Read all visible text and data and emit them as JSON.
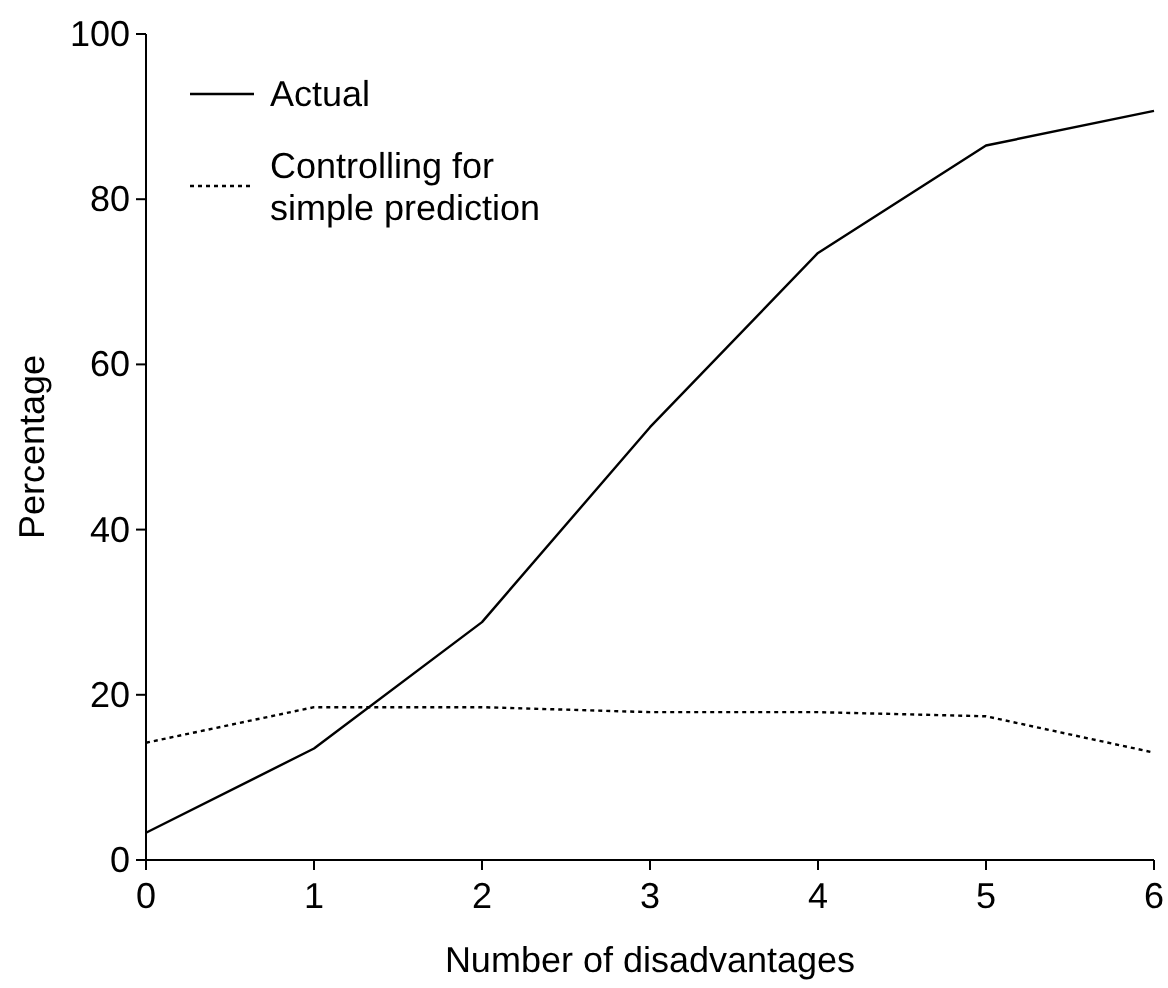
{
  "chart_data": {
    "type": "line",
    "xlabel": "Number of disadvantages",
    "ylabel": "Percentage",
    "x": [
      0,
      1,
      2,
      3,
      4,
      5,
      6
    ],
    "xlim": [
      0,
      6
    ],
    "xticks": [
      0,
      1,
      2,
      3,
      4,
      5,
      6
    ],
    "ylim": [
      0,
      100
    ],
    "yticks": [
      0,
      20,
      40,
      60,
      80,
      100
    ],
    "legend": "top left",
    "grid": false,
    "series": [
      {
        "name": "Actual",
        "color": "#000000",
        "line_style": "solid",
        "values": [
          3.3,
          13.5,
          28.8,
          52.4,
          73.5,
          86.5,
          90.7
        ]
      },
      {
        "name": "Controlling for simple prediction",
        "color": "#000000",
        "line_style": "dotted",
        "values": [
          14.2,
          18.5,
          18.5,
          17.9,
          17.9,
          17.4,
          13.0
        ]
      }
    ]
  }
}
